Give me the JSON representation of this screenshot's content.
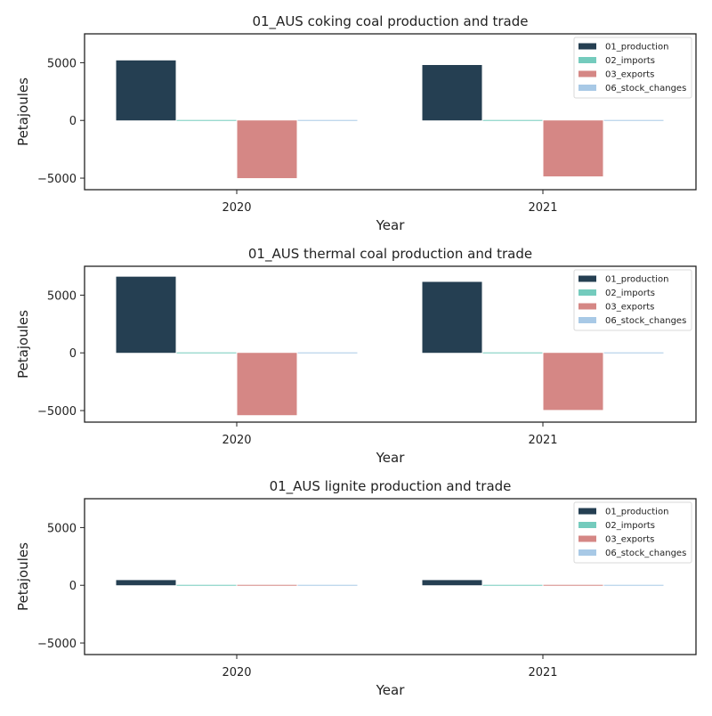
{
  "colors": {
    "01_production": "#253f52",
    "02_imports": "#74cbbd",
    "03_exports": "#d58785",
    "06_stock_changes": "#a8c9e6"
  },
  "chart_data": [
    {
      "type": "bar",
      "title": "01_AUS coking coal production and trade",
      "xlabel": "Year",
      "ylabel": "Petajoules",
      "ylim": [
        -6000,
        7500
      ],
      "yticks": [
        -5000,
        0,
        5000
      ],
      "categories": [
        "2020",
        "2021"
      ],
      "legend_position": "top-right",
      "series": [
        {
          "name": "01_production",
          "values": [
            5200,
            4800
          ]
        },
        {
          "name": "02_imports",
          "values": [
            0,
            0
          ]
        },
        {
          "name": "03_exports",
          "values": [
            -5000,
            -4850
          ]
        },
        {
          "name": "06_stock_changes",
          "values": [
            0,
            0
          ]
        }
      ]
    },
    {
      "type": "bar",
      "title": "01_AUS thermal coal production and trade",
      "xlabel": "Year",
      "ylabel": "Petajoules",
      "ylim": [
        -6000,
        7500
      ],
      "yticks": [
        -5000,
        0,
        5000
      ],
      "categories": [
        "2020",
        "2021"
      ],
      "legend_position": "top-right",
      "series": [
        {
          "name": "01_production",
          "values": [
            6600,
            6150
          ]
        },
        {
          "name": "02_imports",
          "values": [
            0,
            0
          ]
        },
        {
          "name": "03_exports",
          "values": [
            -5400,
            -4950
          ]
        },
        {
          "name": "06_stock_changes",
          "values": [
            0,
            0
          ]
        }
      ]
    },
    {
      "type": "bar",
      "title": "01_AUS lignite production and trade",
      "xlabel": "Year",
      "ylabel": "Petajoules",
      "ylim": [
        -6000,
        7500
      ],
      "yticks": [
        -5000,
        0,
        5000
      ],
      "categories": [
        "2020",
        "2021"
      ],
      "legend_position": "top-right",
      "series": [
        {
          "name": "01_production",
          "values": [
            450,
            450
          ]
        },
        {
          "name": "02_imports",
          "values": [
            0,
            0
          ]
        },
        {
          "name": "03_exports",
          "values": [
            0,
            0
          ]
        },
        {
          "name": "06_stock_changes",
          "values": [
            0,
            0
          ]
        }
      ]
    }
  ]
}
